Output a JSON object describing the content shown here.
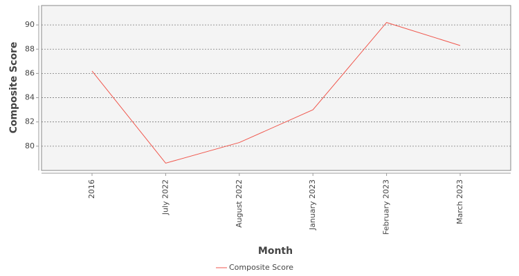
{
  "chart_data": {
    "type": "line",
    "x_label": "Month",
    "y_label": "Composite Score",
    "categories": [
      "2016",
      "July 2022",
      "August 2022",
      "January 2023",
      "February 2023",
      "March 2023"
    ],
    "series": [
      {
        "name": "Composite Score",
        "color": "#f0564c",
        "values": [
          86.2,
          78.6,
          80.3,
          83.0,
          90.2,
          88.3
        ]
      }
    ],
    "ylim": [
      78.0,
      91.6
    ],
    "yticks": [
      80,
      82,
      84,
      86,
      88,
      90
    ],
    "grid": true,
    "legend": "bottom"
  }
}
